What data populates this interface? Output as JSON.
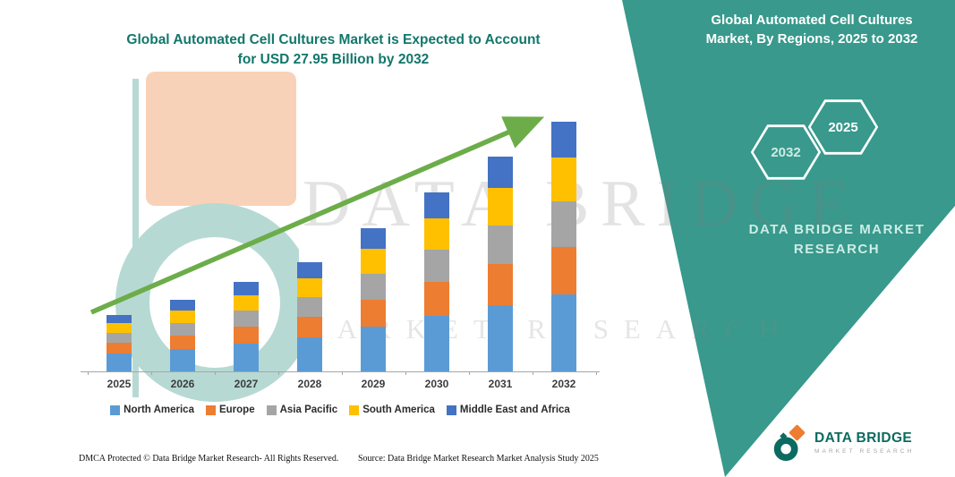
{
  "main_title": {
    "line1": "Global Automated Cell Cultures Market is Expected to Account",
    "line2": "for USD 27.95 Billion by 2032"
  },
  "watermark": {
    "line1": "DATA BRIDGE",
    "line2": "MARKET RESEARCH"
  },
  "panel": {
    "title_line1": "Global Automated Cell Cultures",
    "title_line2": "Market, By Regions, 2025 to 2032",
    "hex_back": "2032",
    "hex_front": "2025",
    "brand_line1": "DATA BRIDGE MARKET",
    "brand_line2": "RESEARCH",
    "background_color": "#38998C"
  },
  "footer": {
    "dmca": "DMCA Protected © Data Bridge Market Research-  All Rights Reserved.",
    "source": "Source: Data Bridge Market Research  Market Analysis Study 2025"
  },
  "logo": {
    "name": "DATA BRIDGE",
    "tagline": "MARKET RESEARCH"
  },
  "chart_data": {
    "type": "bar",
    "stacked": true,
    "title": "Global Automated Cell Cultures Market is Expected to Account for USD 27.95 Billion by 2032",
    "units": "USD Billion",
    "categories": [
      "2025",
      "2026",
      "2027",
      "2028",
      "2029",
      "2030",
      "2031",
      "2032"
    ],
    "series": [
      {
        "name": "North America",
        "color": "#5B9BD5",
        "values": [
          2.0,
          2.5,
          3.1,
          3.8,
          5.0,
          6.2,
          7.4,
          8.6
        ]
      },
      {
        "name": "Europe",
        "color": "#ED7D31",
        "values": [
          1.2,
          1.5,
          1.9,
          2.3,
          3.0,
          3.8,
          4.6,
          5.3
        ]
      },
      {
        "name": "Asia Pacific",
        "color": "#A5A5A5",
        "values": [
          1.1,
          1.4,
          1.8,
          2.2,
          2.9,
          3.6,
          4.3,
          5.1
        ]
      },
      {
        "name": "South America",
        "color": "#FFC000",
        "values": [
          1.1,
          1.4,
          1.7,
          2.1,
          2.8,
          3.5,
          4.2,
          4.9
        ]
      },
      {
        "name": "Middle East and Africa",
        "color": "#4472C4",
        "values": [
          0.9,
          1.2,
          1.5,
          1.8,
          2.3,
          2.9,
          3.5,
          4.05
        ]
      }
    ],
    "totals": [
      6.3,
      8.0,
      10.0,
      12.2,
      16.0,
      20.0,
      24.0,
      27.95
    ],
    "xlabel": "",
    "ylabel": "",
    "ylim": [
      0,
      30
    ],
    "grid": false,
    "legend_position": "bottom",
    "annotations": [
      "upward green growth trend arrow across bars"
    ],
    "arrow_color": "#6CAD49"
  }
}
